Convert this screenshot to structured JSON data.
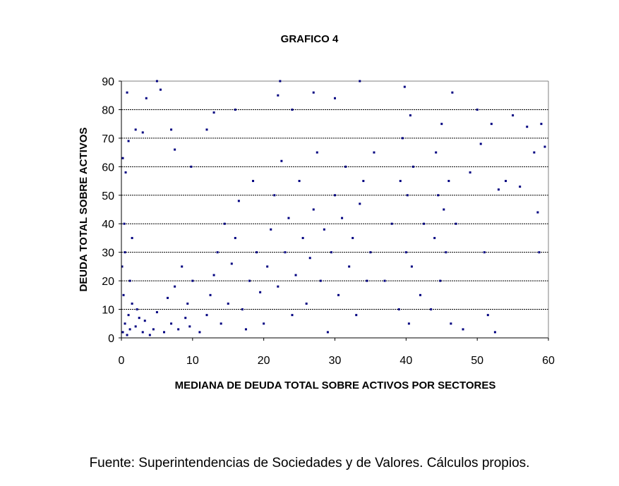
{
  "chart_data": {
    "type": "scatter",
    "title": "GRAFICO 4",
    "xlabel": "MEDIANA DE DEUDA TOTAL SOBRE ACTIVOS POR SECTORES",
    "ylabel": "DEUDA TOTAL SOBRE ACTIVOS",
    "xlim": [
      0,
      60
    ],
    "ylim": [
      0,
      90
    ],
    "xticks": [
      "0",
      "10",
      "20",
      "30",
      "40",
      "50",
      "60"
    ],
    "yticks": [
      "0",
      "10",
      "20",
      "30",
      "40",
      "50",
      "60",
      "70",
      "80",
      "90"
    ],
    "grid": "horizontal dotted",
    "legend": "none",
    "marker_color": "#000080",
    "points_note_sample": true,
    "points": [
      [
        0.2,
        2
      ],
      [
        0.5,
        5
      ],
      [
        0.8,
        1
      ],
      [
        1,
        8
      ],
      [
        1.2,
        3
      ],
      [
        1.5,
        12
      ],
      [
        0.3,
        15
      ],
      [
        2,
        4
      ],
      [
        2.5,
        7
      ],
      [
        3,
        2
      ],
      [
        0.1,
        25
      ],
      [
        0.4,
        40
      ],
      [
        0.6,
        58
      ],
      [
        0.2,
        63
      ],
      [
        0.8,
        86
      ],
      [
        1,
        69
      ],
      [
        1.5,
        35
      ],
      [
        3.5,
        84
      ],
      [
        5,
        90
      ],
      [
        5.5,
        87
      ],
      [
        2,
        73
      ],
      [
        3,
        72
      ],
      [
        0.5,
        30
      ],
      [
        1.2,
        20
      ],
      [
        2.2,
        10
      ],
      [
        3.3,
        6
      ],
      [
        4,
        1
      ],
      [
        4.5,
        3
      ],
      [
        5,
        9
      ],
      [
        6,
        2
      ],
      [
        6.5,
        14
      ],
      [
        7,
        5
      ],
      [
        7.5,
        18
      ],
      [
        8,
        3
      ],
      [
        8.5,
        25
      ],
      [
        9,
        7
      ],
      [
        9.3,
        12
      ],
      [
        9.6,
        4
      ],
      [
        10,
        20
      ],
      [
        9.8,
        60
      ],
      [
        7,
        73
      ],
      [
        7.5,
        66
      ],
      [
        11,
        2
      ],
      [
        12,
        8
      ],
      [
        12.5,
        15
      ],
      [
        13,
        22
      ],
      [
        13.5,
        30
      ],
      [
        14,
        5
      ],
      [
        14.5,
        40
      ],
      [
        15,
        12
      ],
      [
        15.5,
        26
      ],
      [
        16,
        35
      ],
      [
        16.5,
        48
      ],
      [
        17,
        10
      ],
      [
        17.5,
        3
      ],
      [
        18,
        20
      ],
      [
        18.5,
        55
      ],
      [
        19,
        30
      ],
      [
        19.5,
        16
      ],
      [
        16,
        80
      ],
      [
        13,
        79
      ],
      [
        12,
        73
      ],
      [
        20,
        5
      ],
      [
        20.5,
        25
      ],
      [
        21,
        38
      ],
      [
        21.5,
        50
      ],
      [
        22,
        18
      ],
      [
        22.5,
        62
      ],
      [
        23,
        30
      ],
      [
        23.5,
        42
      ],
      [
        24,
        8
      ],
      [
        24.5,
        22
      ],
      [
        25,
        55
      ],
      [
        25.5,
        35
      ],
      [
        26,
        12
      ],
      [
        26.5,
        28
      ],
      [
        27,
        45
      ],
      [
        27.5,
        65
      ],
      [
        28,
        20
      ],
      [
        28.5,
        38
      ],
      [
        22.3,
        90
      ],
      [
        24,
        80
      ],
      [
        22,
        85
      ],
      [
        29,
        2
      ],
      [
        29.5,
        30
      ],
      [
        30,
        50
      ],
      [
        30.5,
        15
      ],
      [
        31,
        42
      ],
      [
        31.5,
        60
      ],
      [
        32,
        25
      ],
      [
        32.5,
        35
      ],
      [
        33,
        8
      ],
      [
        33.5,
        47
      ],
      [
        34,
        55
      ],
      [
        34.5,
        20
      ],
      [
        35,
        30
      ],
      [
        35.5,
        65
      ],
      [
        30,
        84
      ],
      [
        33.5,
        90
      ],
      [
        27,
        86
      ],
      [
        37,
        20
      ],
      [
        38,
        40
      ],
      [
        39,
        10
      ],
      [
        39.2,
        55
      ],
      [
        39.5,
        70
      ],
      [
        39.8,
        88
      ],
      [
        40,
        30
      ],
      [
        40.2,
        50
      ],
      [
        40.4,
        5
      ],
      [
        40.6,
        78
      ],
      [
        40.8,
        25
      ],
      [
        41,
        60
      ],
      [
        42,
        15
      ],
      [
        42.5,
        40
      ],
      [
        43.5,
        10
      ],
      [
        44,
        35
      ],
      [
        44.2,
        65
      ],
      [
        44.5,
        50
      ],
      [
        44.8,
        20
      ],
      [
        45,
        75
      ],
      [
        45.3,
        45
      ],
      [
        45.6,
        30
      ],
      [
        46,
        55
      ],
      [
        46.3,
        5
      ],
      [
        46.5,
        86
      ],
      [
        47,
        40
      ],
      [
        48,
        3
      ],
      [
        49,
        58
      ],
      [
        50,
        80
      ],
      [
        50.5,
        68
      ],
      [
        51,
        30
      ],
      [
        51.5,
        8
      ],
      [
        52,
        75
      ],
      [
        52.5,
        2
      ],
      [
        53,
        52
      ],
      [
        54,
        55
      ],
      [
        55,
        78
      ],
      [
        56,
        53
      ],
      [
        57,
        74
      ],
      [
        58,
        65
      ],
      [
        58.5,
        44
      ],
      [
        58.7,
        30
      ],
      [
        59,
        75
      ],
      [
        59.5,
        67
      ]
    ]
  },
  "source": "Fuente: Superintendencias de Sociedades y de Valores. Cálculos propios."
}
